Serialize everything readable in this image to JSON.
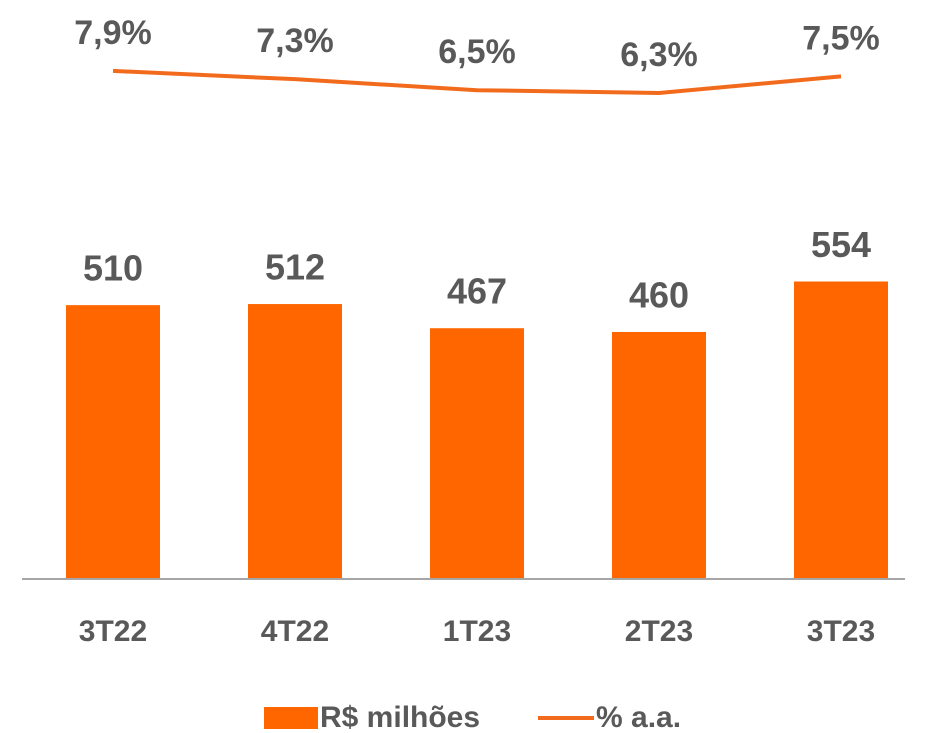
{
  "chart_data": {
    "type": "bar",
    "categories": [
      "3T22",
      "4T22",
      "1T23",
      "2T23",
      "3T23"
    ],
    "series": [
      {
        "name": "R$ milhões",
        "color": "#ff6600",
        "values": [
          510,
          512,
          467,
          460,
          554
        ]
      },
      {
        "name": "% a.a.",
        "type": "line",
        "axis": "y2",
        "color": "#f26b1d",
        "values": [
          7.9,
          7.3,
          6.5,
          6.3,
          7.5
        ],
        "value_labels": [
          "7,9%",
          "7,3%",
          "6,5%",
          "6,3%",
          "7,5%"
        ]
      }
    ],
    "ylim": [
      0,
      1000
    ],
    "y2lim": [
      -29,
      10
    ]
  }
}
